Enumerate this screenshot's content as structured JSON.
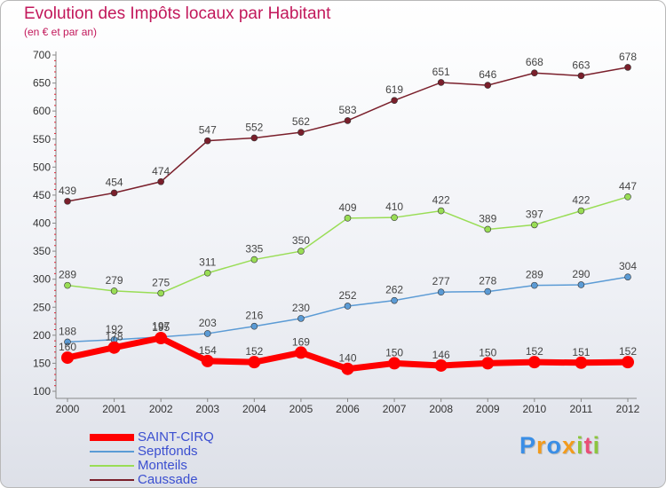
{
  "chart_data": {
    "type": "line",
    "title": "Evolution des Impôts locaux par Habitant",
    "subtitle": "(en € et par an)",
    "xlabel": "",
    "ylabel": "",
    "x": [
      "2000",
      "2001",
      "2002",
      "2003",
      "2004",
      "2005",
      "2006",
      "2007",
      "2008",
      "2009",
      "2010",
      "2011",
      "2012"
    ],
    "ylim": [
      100,
      700
    ],
    "yticks": [
      100,
      150,
      200,
      250,
      300,
      350,
      400,
      450,
      500,
      550,
      600,
      650,
      700
    ],
    "grid": false,
    "legend_position": "bottom-left",
    "series": [
      {
        "name": "SAINT-CIRQ",
        "color": "#ff0000",
        "values": [
          160,
          178,
          195,
          154,
          152,
          169,
          140,
          150,
          146,
          150,
          152,
          151,
          152
        ]
      },
      {
        "name": "Septfonds",
        "color": "#5b9bd5",
        "values": [
          188,
          192,
          197,
          203,
          216,
          230,
          252,
          262,
          277,
          278,
          289,
          290,
          304
        ]
      },
      {
        "name": "Monteils",
        "color": "#99dd55",
        "values": [
          289,
          279,
          275,
          311,
          335,
          350,
          409,
          410,
          422,
          389,
          397,
          422,
          447
        ]
      },
      {
        "name": "Caussade",
        "color": "#7a1f2b",
        "values": [
          439,
          454,
          474,
          547,
          552,
          562,
          583,
          619,
          651,
          646,
          668,
          663,
          678
        ]
      }
    ]
  },
  "logo": {
    "letters": [
      "P",
      "r",
      "o",
      "x",
      "i",
      "t",
      "i"
    ],
    "colors": [
      "#3a8ee6",
      "#f29b1d",
      "#3a8ee6",
      "#f29b1d",
      "#8cc63e",
      "#e94e77",
      "#8cc63e"
    ]
  }
}
